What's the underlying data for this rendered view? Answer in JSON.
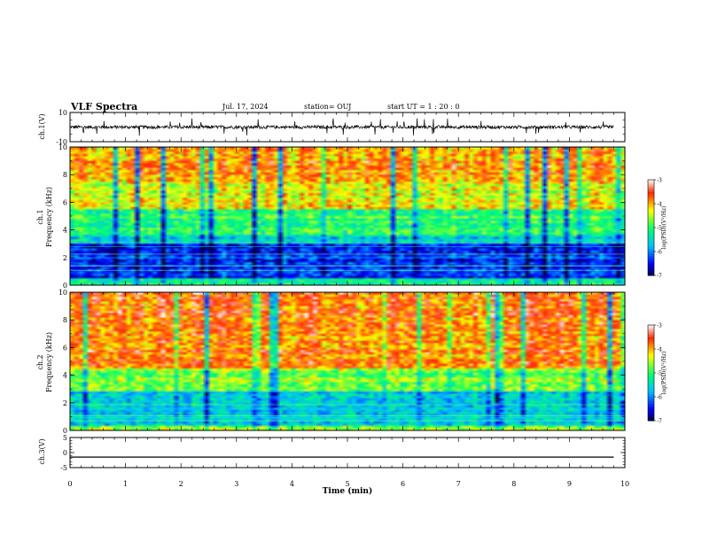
{
  "header": {
    "title": "VLF Spectra",
    "date": "Jul. 17, 2024",
    "station": "station= OUJ",
    "start": "start  UT =  1 : 20 : 0"
  },
  "colors": {
    "spectrogram_scale": [
      "#000060",
      "#0000ff",
      "#00c8ff",
      "#00ff60",
      "#ffff00",
      "#ff2800",
      "#ffffff"
    ],
    "trace": "#000000"
  },
  "chart_data": [
    {
      "type": "line",
      "panel": "ch1-waveform",
      "ylabel": "ch.1(V)",
      "ylim": [
        -10,
        10
      ],
      "y_ticks": [
        "10",
        "-10"
      ],
      "baseline": 0,
      "description_values": "noisy waveform around 0 V with spikes up to about ±5 V"
    },
    {
      "type": "heatmap",
      "panel": "ch1-spectrogram",
      "ylabel_lines": [
        "ch.1",
        "Frequency  (kHz)"
      ],
      "ylim": [
        0,
        10
      ],
      "y_ticks": [
        "0",
        "2",
        "4",
        "6",
        "8",
        "10"
      ],
      "colorbar": {
        "label": "log(PSD)(V²/Hz)",
        "range": [
          -7,
          -3
        ],
        "ticks": [
          "-3",
          "-4",
          "-5",
          "-6",
          "-7"
        ]
      },
      "bands": [
        {
          "from": 0,
          "to": 0.5,
          "level": -5.2
        },
        {
          "from": 0.5,
          "to": 3.0,
          "level": -6.3
        },
        {
          "from": 3.0,
          "to": 3.6,
          "level": -5.6
        },
        {
          "from": 3.6,
          "to": 5.5,
          "level": -5.0
        },
        {
          "from": 5.5,
          "to": 7.5,
          "level": -4.4
        },
        {
          "from": 7.5,
          "to": 10,
          "level": -3.9
        }
      ]
    },
    {
      "type": "heatmap",
      "panel": "ch2-spectrogram",
      "ylabel_lines": [
        "ch.2",
        "Frequency  (kHz)"
      ],
      "ylim": [
        0,
        10
      ],
      "y_ticks": [
        "0",
        "2",
        "4",
        "6",
        "8",
        "10"
      ],
      "colorbar": {
        "label": "log(PSD)(V²/Hz)",
        "range": [
          -7,
          -3
        ],
        "ticks": [
          "-3",
          "-4",
          "-5",
          "-6",
          "-7"
        ]
      },
      "bands": [
        {
          "from": 0,
          "to": 0.4,
          "level": -4.6
        },
        {
          "from": 0.4,
          "to": 2.8,
          "level": -5.6
        },
        {
          "from": 2.8,
          "to": 4.5,
          "level": -4.7
        },
        {
          "from": 4.5,
          "to": 10,
          "level": -3.8
        }
      ]
    },
    {
      "type": "line",
      "panel": "ch3-waveform",
      "ylabel": "ch.3(V)",
      "ylim": [
        -5,
        5
      ],
      "y_ticks": [
        "5",
        "0",
        "-5"
      ],
      "values_constant": -1.5
    }
  ],
  "xaxis": {
    "label": "Time  (min)",
    "range": [
      0,
      10
    ],
    "ticks": [
      "0",
      "1",
      "2",
      "3",
      "4",
      "5",
      "6",
      "7",
      "8",
      "9",
      "10"
    ]
  }
}
